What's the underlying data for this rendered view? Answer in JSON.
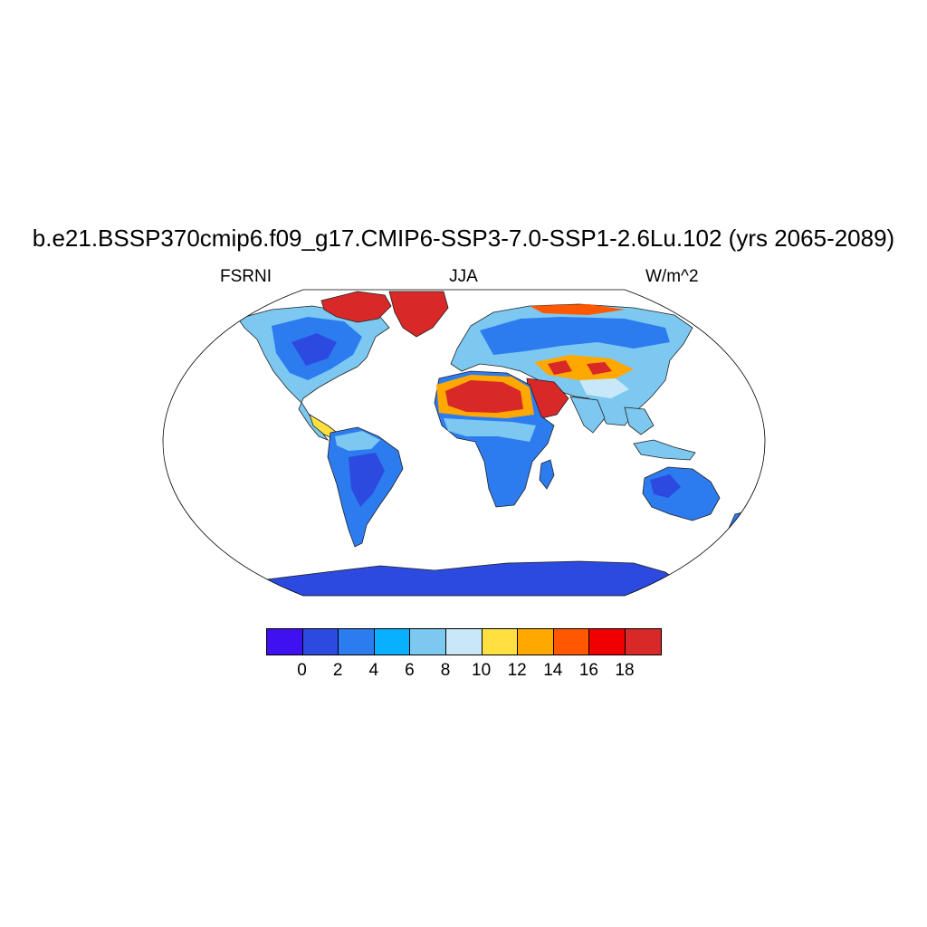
{
  "title": "b.e21.BSSP370cmip6.f09_g17.CMIP6-SSP3-7.0-SSP1-2.6Lu.102 (yrs 2065-2089)",
  "subtitle": {
    "left": "FSRNI",
    "center": "JJA",
    "right": "W/m^2"
  },
  "colorbar": {
    "colors": [
      "#3f10f0",
      "#2c4ae0",
      "#2c7cf0",
      "#08b0ff",
      "#7cc8f0",
      "#c8e8f8",
      "#ffe040",
      "#ffa800",
      "#ff5800",
      "#f00000",
      "#d82828"
    ],
    "labels": [
      "0",
      "2",
      "4",
      "6",
      "8",
      "10",
      "12",
      "14",
      "16",
      "18"
    ]
  },
  "ocean_color": "#ffffff",
  "land_base_color": "#2c7cf0"
}
